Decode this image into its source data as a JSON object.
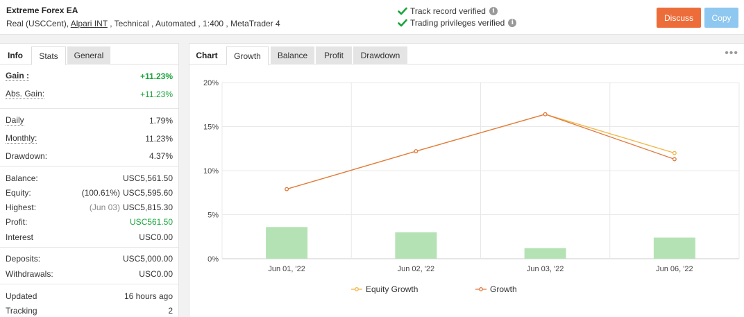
{
  "header": {
    "title": "Extreme Forex EA",
    "account_type": "Real (USCCent)",
    "broker": "Alpari INT",
    "tags": ", Technical , Automated , 1:400 , MetaTrader 4",
    "track_record": "Track record verified",
    "trading_privileges": "Trading privileges verified",
    "info_glyph": "i",
    "discuss_label": "Discuss",
    "copy_label": "Copy",
    "verified_color": "#19a53a"
  },
  "left_tabs": [
    "Info",
    "Stats",
    "General"
  ],
  "stats": {
    "gain": {
      "label": "Gain :",
      "value": "+11.23%"
    },
    "abs_gain": {
      "label": "Abs. Gain:",
      "value": "+11.23%"
    },
    "daily": {
      "label": "Daily",
      "value": "1.79%"
    },
    "monthly": {
      "label": "Monthly:",
      "value": "11.23%"
    },
    "drawdown": {
      "label": "Drawdown:",
      "value": "4.37%"
    },
    "balance": {
      "label": "Balance:",
      "value": "USC5,561.50"
    },
    "equity": {
      "label": "Equity:",
      "note": "(100.61%)",
      "value": "USC5,595.60"
    },
    "highest": {
      "label": "Highest:",
      "note": "(Jun 03)",
      "value": "USC5,815.30"
    },
    "profit": {
      "label": "Profit:",
      "value": "USC561.50"
    },
    "interest": {
      "label": "Interest",
      "value": "USC0.00"
    },
    "deposits": {
      "label": "Deposits:",
      "value": "USC5,000.00"
    },
    "withdrawals": {
      "label": "Withdrawals:",
      "value": "USC0.00"
    },
    "updated": {
      "label": "Updated",
      "value": "16 hours ago"
    },
    "tracking": {
      "label": "Tracking",
      "value": "2"
    }
  },
  "right_tabs": [
    "Chart",
    "Growth",
    "Balance",
    "Profit",
    "Drawdown"
  ],
  "menu_icon": "•••",
  "chart_data": {
    "type": "line",
    "categories": [
      "Jun 01, '22",
      "Jun 02, '22",
      "Jun 03, '22",
      "Jun 06, '22"
    ],
    "yticks": [
      "0%",
      "5%",
      "10%",
      "15%",
      "20%"
    ],
    "ylim": [
      0,
      20
    ],
    "series": [
      {
        "name": "Equity Growth",
        "type": "line",
        "color": "#f2b544",
        "values": [
          7.9,
          12.2,
          16.4,
          12.0
        ]
      },
      {
        "name": "Growth",
        "type": "line",
        "color": "#e07a3e",
        "values": [
          7.9,
          12.2,
          16.4,
          11.3
        ]
      }
    ],
    "bars": {
      "color": "#b5e2b5",
      "values": [
        3.6,
        3.0,
        1.2,
        2.4
      ]
    },
    "grid": true,
    "legend_position": "bottom"
  }
}
